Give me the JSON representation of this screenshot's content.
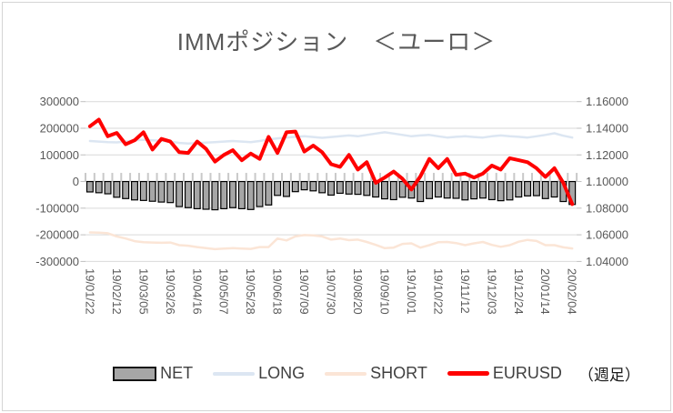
{
  "title": "IMMポジション　＜ユーロ＞",
  "legend": {
    "net": "NET",
    "long": "LONG",
    "short": "SHORT",
    "eurusd": "EURUSD",
    "timeframe": "（週足）"
  },
  "colors": {
    "title_text": "#595959",
    "axis_text": "#595959",
    "gridline": "#d9d9d9",
    "category_tick": "#c9c9c9",
    "axis_tick": "#bfbfbf",
    "bar_fill": "#a6a6a6",
    "bar_border": "#000000",
    "long_line": "#dce6f2",
    "short_line": "#fbe5d6",
    "eurusd_line": "#ff0000"
  },
  "chart_data": {
    "type": "bar",
    "subtype": "combo-bar-and-lines",
    "title": "IMMポジション　＜ユーロ＞",
    "grid": "horizontal",
    "legend_position": "bottom",
    "label_interval": 3,
    "x_labels": [
      "19/01/22",
      "19/02/12",
      "19/03/05",
      "19/03/26",
      "19/04/16",
      "19/05/07",
      "19/05/28",
      "19/06/18",
      "19/07/09",
      "19/07/30",
      "19/08/20",
      "19/09/10",
      "19/10/01",
      "19/10/22",
      "19/11/12",
      "19/12/03",
      "19/12/24",
      "20/01/14",
      "20/02/04"
    ],
    "left_axis": {
      "min": -300000,
      "max": 300000,
      "ticks": [
        {
          "label": "300000",
          "v": 300000
        },
        {
          "label": "200000",
          "v": 200000
        },
        {
          "label": "100000",
          "v": 100000
        },
        {
          "label": "0",
          "v": 0
        },
        {
          "label": "-100000",
          "v": -100000
        },
        {
          "label": "-200000",
          "v": -200000
        },
        {
          "label": "-300000",
          "v": -300000
        }
      ]
    },
    "right_axis": {
      "min": 1.04,
      "max": 1.16,
      "ticks": [
        {
          "label": "1.16000",
          "v": 1.16
        },
        {
          "label": "1.14000",
          "v": 1.14
        },
        {
          "label": "1.12000",
          "v": 1.12
        },
        {
          "label": "1.10000",
          "v": 1.1
        },
        {
          "label": "1.08000",
          "v": 1.08
        },
        {
          "label": "1.06000",
          "v": 1.06
        },
        {
          "label": "1.04000",
          "v": 1.04
        }
      ]
    },
    "series": [
      {
        "name": "NET",
        "type": "bar",
        "axis": "left",
        "color": "#a6a6a6",
        "border": "#000000",
        "values": [
          -39000,
          -42000,
          -46000,
          -59000,
          -64000,
          -69000,
          -71000,
          -74000,
          -77000,
          -79000,
          -94000,
          -98000,
          -102000,
          -104000,
          -106000,
          -102000,
          -98000,
          -102000,
          -105000,
          -94000,
          -88000,
          -52000,
          -56000,
          -38000,
          -31000,
          -35000,
          -42000,
          -51000,
          -44000,
          -47000,
          -48000,
          -52000,
          -58000,
          -65000,
          -68000,
          -59000,
          -62000,
          -75000,
          -64000,
          -58000,
          -62000,
          -63000,
          -69000,
          -65000,
          -62000,
          -68000,
          -72000,
          -69000,
          -58000,
          -54000,
          -53000,
          -64000,
          -58000,
          -75000,
          -86000
        ]
      },
      {
        "name": "LONG",
        "type": "line",
        "axis": "left",
        "color": "#dce6f2",
        "width": 2.5,
        "values": [
          152000,
          150000,
          148000,
          147000,
          150000,
          155000,
          157000,
          155000,
          153000,
          150000,
          145000,
          143000,
          144000,
          146000,
          148000,
          150000,
          152000,
          150000,
          148000,
          152000,
          158000,
          162000,
          165000,
          168000,
          170000,
          167000,
          164000,
          167000,
          170000,
          173000,
          170000,
          175000,
          180000,
          185000,
          180000,
          175000,
          170000,
          173000,
          175000,
          170000,
          165000,
          168000,
          170000,
          167000,
          165000,
          170000,
          173000,
          170000,
          168000,
          165000,
          170000,
          175000,
          181000,
          172000,
          165000
        ]
      },
      {
        "name": "SHORT",
        "type": "line",
        "axis": "left",
        "color": "#fbe5d6",
        "width": 2.5,
        "values": [
          -191000,
          -192000,
          -194000,
          -206000,
          -214000,
          -224000,
          -228000,
          -229000,
          -230000,
          -229000,
          -239000,
          -241000,
          -246000,
          -250000,
          -254000,
          -252000,
          -250000,
          -252000,
          -253000,
          -246000,
          -246000,
          -214000,
          -221000,
          -206000,
          -201000,
          -202000,
          -206000,
          -218000,
          -214000,
          -220000,
          -218000,
          -227000,
          -238000,
          -250000,
          -248000,
          -234000,
          -232000,
          -248000,
          -239000,
          -228000,
          -227000,
          -231000,
          -239000,
          -232000,
          -227000,
          -238000,
          -245000,
          -239000,
          -226000,
          -219000,
          -223000,
          -239000,
          -239000,
          -247000,
          -251000
        ]
      },
      {
        "name": "EURUSD",
        "type": "line",
        "axis": "right",
        "color": "#ff0000",
        "width": 4,
        "values": [
          1.1415,
          1.1465,
          1.134,
          1.1365,
          1.128,
          1.131,
          1.137,
          1.124,
          1.132,
          1.13,
          1.122,
          1.1215,
          1.13,
          1.1245,
          1.115,
          1.12,
          1.1235,
          1.116,
          1.121,
          1.117,
          1.1335,
          1.1215,
          1.137,
          1.1375,
          1.1225,
          1.127,
          1.122,
          1.113,
          1.111,
          1.12,
          1.109,
          1.1145,
          1.099,
          1.103,
          1.1075,
          1.102,
          1.094,
          1.104,
          1.117,
          1.11,
          1.117,
          1.105,
          1.106,
          1.103,
          1.106,
          1.112,
          1.109,
          1.1175,
          1.116,
          1.1145,
          1.11,
          1.1035,
          1.11,
          1.099,
          1.083
        ]
      }
    ]
  }
}
